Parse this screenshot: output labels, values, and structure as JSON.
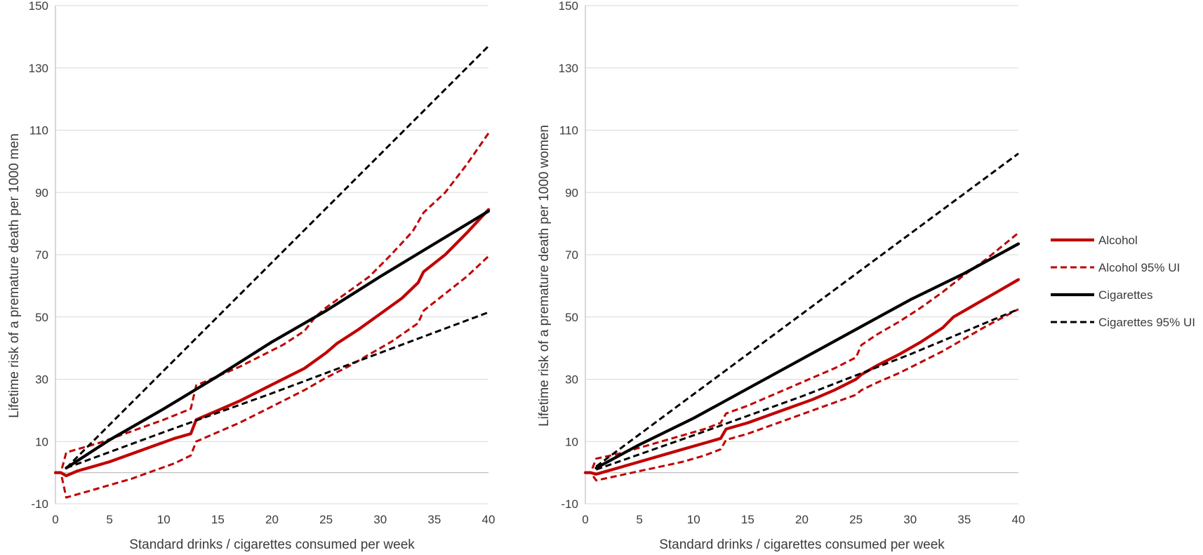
{
  "colors": {
    "alcohol": "#c00000",
    "cigarettes": "#000000"
  },
  "legend": {
    "items": [
      {
        "label": "Alcohol",
        "key": "alcohol",
        "style": "solid"
      },
      {
        "label": "Alcohol 95% UI",
        "key": "alcohol",
        "style": "dashed"
      },
      {
        "label": "Cigarettes",
        "key": "cigarettes",
        "style": "solid"
      },
      {
        "label": "Cigarettes 95% UI",
        "key": "cigarettes",
        "style": "dashed"
      }
    ]
  },
  "chart_data": [
    {
      "type": "line",
      "title": "",
      "xlabel": "Standard drinks / cigarettes consumed per week",
      "ylabel": "Lifetime risk of a premature death per 1000 men",
      "xlim": [
        0,
        40
      ],
      "ylim": [
        -10,
        150
      ],
      "xticks": [
        "0",
        "5",
        "10",
        "15",
        "20",
        "25",
        "30",
        "35",
        "40"
      ],
      "yticks": [
        "-10",
        "10",
        "30",
        "50",
        "70",
        "90",
        "110",
        "130",
        "150"
      ],
      "grid": true,
      "series": [
        {
          "name": "Alcohol",
          "key": "alcohol",
          "style": "solid",
          "x": [
            0,
            0.5,
            1,
            2,
            3,
            5,
            7,
            9,
            11,
            12.5,
            13,
            15,
            17,
            19,
            21,
            23,
            25,
            26,
            28,
            30,
            32,
            33.5,
            34,
            36,
            38,
            40
          ],
          "y": [
            0,
            0,
            -1,
            0.5,
            1.5,
            3.5,
            6,
            8.5,
            11,
            12.5,
            17,
            20,
            23,
            26.5,
            30,
            33.5,
            38.5,
            41.5,
            46,
            51,
            56,
            61,
            64.5,
            70,
            77,
            84.5
          ]
        },
        {
          "name": "Alcohol 95% UI upper",
          "key": "alcohol",
          "style": "dashed",
          "x": [
            0,
            0.5,
            1,
            2,
            4,
            6,
            8,
            10,
            12.5,
            13,
            15,
            17,
            19,
            21,
            23,
            24,
            25,
            27,
            29,
            31,
            33,
            34,
            36,
            38,
            40
          ],
          "y": [
            0,
            0,
            6.5,
            7.5,
            9.5,
            12,
            14.5,
            17,
            20.5,
            28,
            31,
            34,
            37.5,
            41,
            45.5,
            50,
            53,
            58,
            63,
            70,
            77.5,
            83.5,
            90,
            99,
            109
          ]
        },
        {
          "name": "Alcohol 95% UI lower",
          "key": "alcohol",
          "style": "dashed",
          "x": [
            0,
            0.5,
            1,
            3,
            5,
            7,
            9,
            11,
            12.5,
            13,
            15,
            17,
            19,
            21,
            23,
            25,
            27,
            29,
            31,
            33.5,
            34,
            36,
            38,
            40
          ],
          "y": [
            0,
            0,
            -8,
            -6,
            -4,
            -2,
            0.5,
            3,
            5.5,
            10,
            13,
            16,
            19.5,
            23,
            26.5,
            30.5,
            34,
            38,
            42,
            48,
            52,
            57.5,
            63,
            69.5
          ]
        },
        {
          "name": "Cigarettes",
          "key": "cigarettes",
          "style": "solid",
          "x": [
            1,
            5,
            10,
            15,
            20,
            25,
            30,
            35,
            40
          ],
          "y": [
            1.5,
            10.5,
            20.5,
            31,
            42,
            52,
            63,
            73.5,
            84
          ]
        },
        {
          "name": "Cigarettes 95% UI upper",
          "key": "cigarettes",
          "style": "dashed",
          "x": [
            1,
            40
          ],
          "y": [
            1.5,
            137
          ]
        },
        {
          "name": "Cigarettes 95% UI lower",
          "key": "cigarettes",
          "style": "dashed",
          "x": [
            1,
            10,
            20,
            30,
            40
          ],
          "y": [
            1.5,
            13,
            25.5,
            38.5,
            51.5
          ]
        }
      ]
    },
    {
      "type": "line",
      "title": "",
      "xlabel": "Standard drinks / cigarettes consumed per week",
      "ylabel": "Lifetime risk of a premature death per 1000 women",
      "xlim": [
        0,
        40
      ],
      "ylim": [
        -10,
        150
      ],
      "xticks": [
        "0",
        "5",
        "10",
        "15",
        "20",
        "25",
        "30",
        "35",
        "40"
      ],
      "yticks": [
        "-10",
        "10",
        "30",
        "50",
        "70",
        "90",
        "110",
        "130",
        "150"
      ],
      "grid": true,
      "series": [
        {
          "name": "Alcohol",
          "key": "alcohol",
          "style": "solid",
          "x": [
            0,
            0.5,
            1,
            3,
            5,
            7,
            9,
            11,
            12.5,
            13,
            15,
            17,
            19,
            21,
            23,
            25,
            25.5,
            27,
            29,
            31,
            33,
            34,
            36,
            38,
            40
          ],
          "y": [
            0,
            0,
            -0.5,
            1.5,
            3.5,
            5.5,
            7.5,
            9.5,
            11,
            14,
            16,
            18.5,
            21,
            23.5,
            26.5,
            30,
            31.5,
            34.5,
            38,
            42,
            46.5,
            50,
            54,
            58,
            62
          ]
        },
        {
          "name": "Alcohol 95% UI upper",
          "key": "alcohol",
          "style": "dashed",
          "x": [
            0,
            0.5,
            1,
            3,
            5,
            7,
            9,
            11,
            12.5,
            13,
            15,
            17,
            19,
            21,
            23,
            25,
            25.5,
            27,
            29,
            31,
            33,
            35,
            37,
            40
          ],
          "y": [
            0,
            0,
            4.5,
            6,
            8,
            10,
            12,
            14,
            16,
            19,
            21.5,
            24.5,
            27.5,
            30.5,
            33.5,
            37,
            41,
            44.5,
            48.5,
            53,
            58,
            63.5,
            68.5,
            77
          ]
        },
        {
          "name": "Alcohol 95% UI lower",
          "key": "alcohol",
          "style": "dashed",
          "x": [
            0,
            0.5,
            1,
            3,
            5,
            7,
            9,
            11,
            12.5,
            13,
            15,
            17,
            19,
            21,
            23,
            25,
            25.5,
            27,
            29,
            31,
            33,
            35,
            37,
            40
          ],
          "y": [
            0,
            0,
            -2.5,
            -1,
            0.5,
            2,
            3.5,
            5.5,
            7.5,
            10.5,
            12.5,
            15,
            17.5,
            20,
            22.5,
            25,
            26.5,
            29,
            32,
            35.5,
            39,
            43,
            47,
            52.5
          ]
        },
        {
          "name": "Cigarettes",
          "key": "cigarettes",
          "style": "solid",
          "x": [
            1,
            5,
            10,
            15,
            20,
            25,
            30,
            35,
            40
          ],
          "y": [
            1.5,
            9,
            17.5,
            27,
            36.5,
            46,
            55.5,
            64,
            73.5
          ]
        },
        {
          "name": "Cigarettes 95% UI upper",
          "key": "cigarettes",
          "style": "dashed",
          "x": [
            1,
            40
          ],
          "y": [
            2,
            102.5
          ]
        },
        {
          "name": "Cigarettes 95% UI lower",
          "key": "cigarettes",
          "style": "dashed",
          "x": [
            1,
            10,
            20,
            30,
            40
          ],
          "y": [
            1,
            12,
            24.5,
            38,
            52.5
          ]
        }
      ]
    }
  ]
}
